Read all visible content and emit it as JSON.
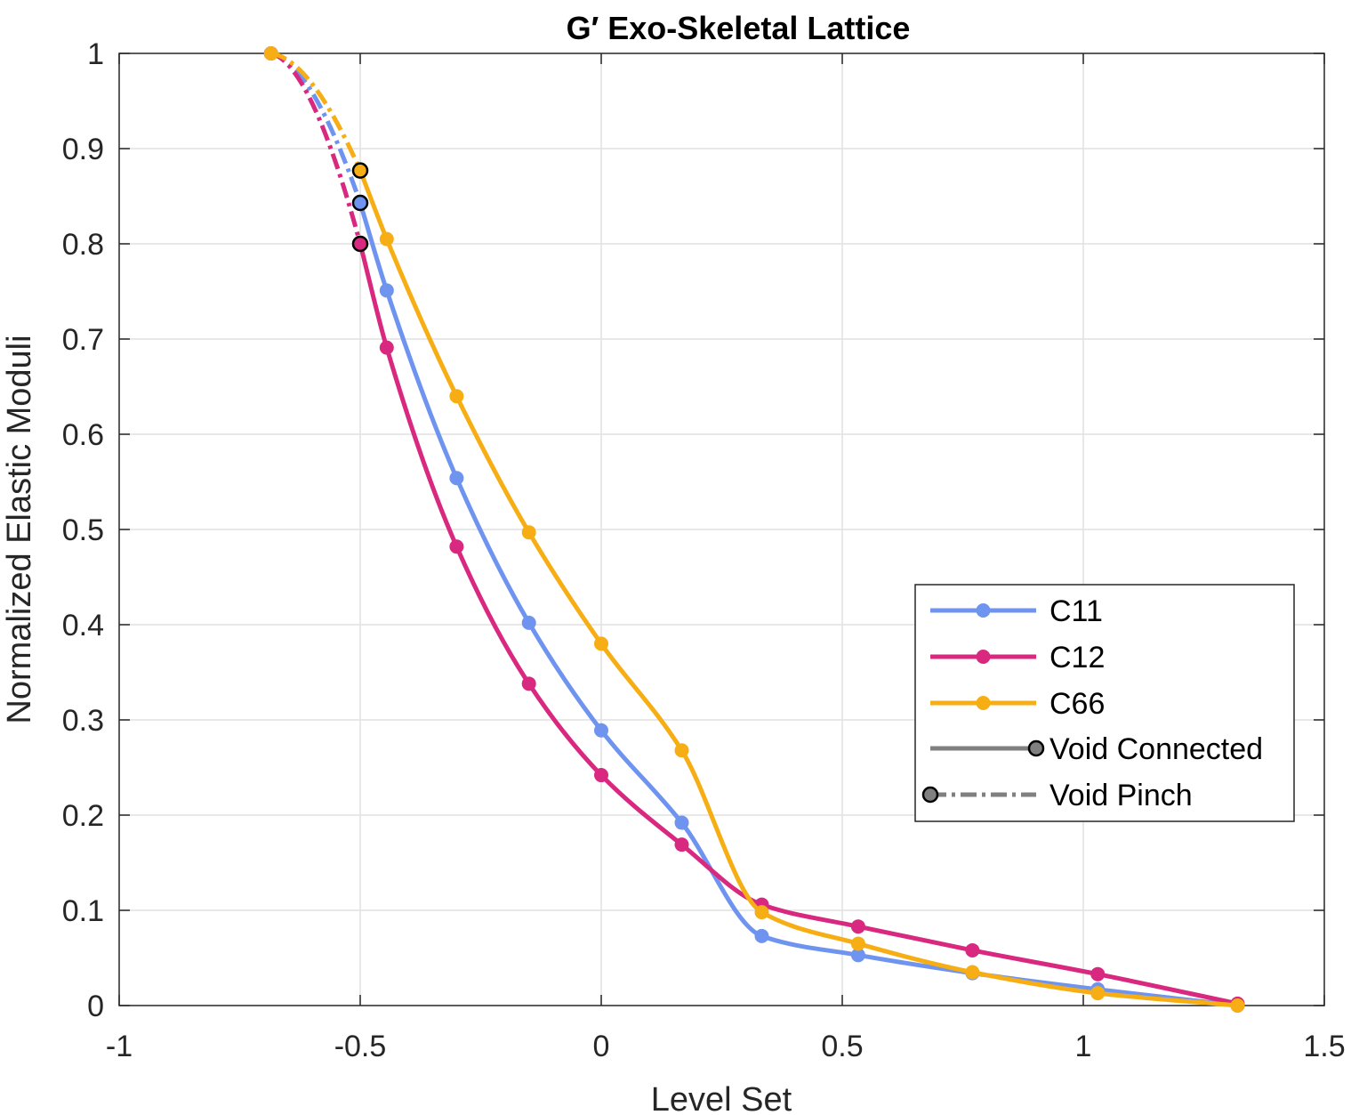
{
  "chart_data": {
    "type": "line",
    "title": "G′ Exo-Skeletal Lattice",
    "xlabel": "Level Set",
    "ylabel": "Normalized Elastic Moduli",
    "xlim": [
      -1,
      1.5
    ],
    "ylim": [
      0,
      1
    ],
    "xticks": [
      -1,
      -0.5,
      0,
      0.5,
      1,
      1.5
    ],
    "xtick_labels": [
      "-1",
      "-0.5",
      "0",
      "0.5",
      "1",
      "1.5"
    ],
    "yticks": [
      0,
      0.1,
      0.2,
      0.3,
      0.4,
      0.5,
      0.6,
      0.7,
      0.8,
      0.9,
      1
    ],
    "ytick_labels": [
      "0",
      "0.1",
      "0.2",
      "0.3",
      "0.4",
      "0.5",
      "0.6",
      "0.7",
      "0.8",
      "0.9",
      "1"
    ],
    "grid": true,
    "legend_position": "right",
    "colors": {
      "C11": "#6f94f0",
      "C12": "#d9287f",
      "C66": "#f7ae14",
      "style": "#808080"
    },
    "series": [
      {
        "name": "C11",
        "pinch": {
          "x": [
            -0.685,
            -0.5
          ],
          "y": [
            1.0,
            0.843
          ]
        },
        "connected": {
          "x": [
            -0.5,
            -0.445,
            -0.3,
            -0.15,
            0.0,
            0.167,
            0.333,
            0.533,
            0.77,
            1.03,
            1.32
          ],
          "y": [
            0.843,
            0.751,
            0.554,
            0.402,
            0.289,
            0.192,
            0.073,
            0.053,
            0.034,
            0.017,
            0.0
          ]
        }
      },
      {
        "name": "C12",
        "pinch": {
          "x": [
            -0.685,
            -0.5
          ],
          "y": [
            1.0,
            0.8
          ]
        },
        "connected": {
          "x": [
            -0.5,
            -0.445,
            -0.3,
            -0.15,
            0.0,
            0.167,
            0.333,
            0.533,
            0.77,
            1.03,
            1.32
          ],
          "y": [
            0.8,
            0.691,
            0.482,
            0.338,
            0.242,
            0.169,
            0.106,
            0.083,
            0.058,
            0.033,
            0.002
          ]
        }
      },
      {
        "name": "C66",
        "pinch": {
          "x": [
            -0.685,
            -0.5
          ],
          "y": [
            1.0,
            0.877
          ]
        },
        "connected": {
          "x": [
            -0.5,
            -0.445,
            -0.3,
            -0.15,
            0.0,
            0.167,
            0.333,
            0.533,
            0.77,
            1.03,
            1.32
          ],
          "y": [
            0.877,
            0.805,
            0.64,
            0.497,
            0.38,
            0.268,
            0.098,
            0.065,
            0.035,
            0.013,
            0.0
          ]
        }
      }
    ],
    "legend_entries": [
      "C11",
      "C12",
      "C66",
      "Void Connected",
      "Void Pinch"
    ]
  }
}
